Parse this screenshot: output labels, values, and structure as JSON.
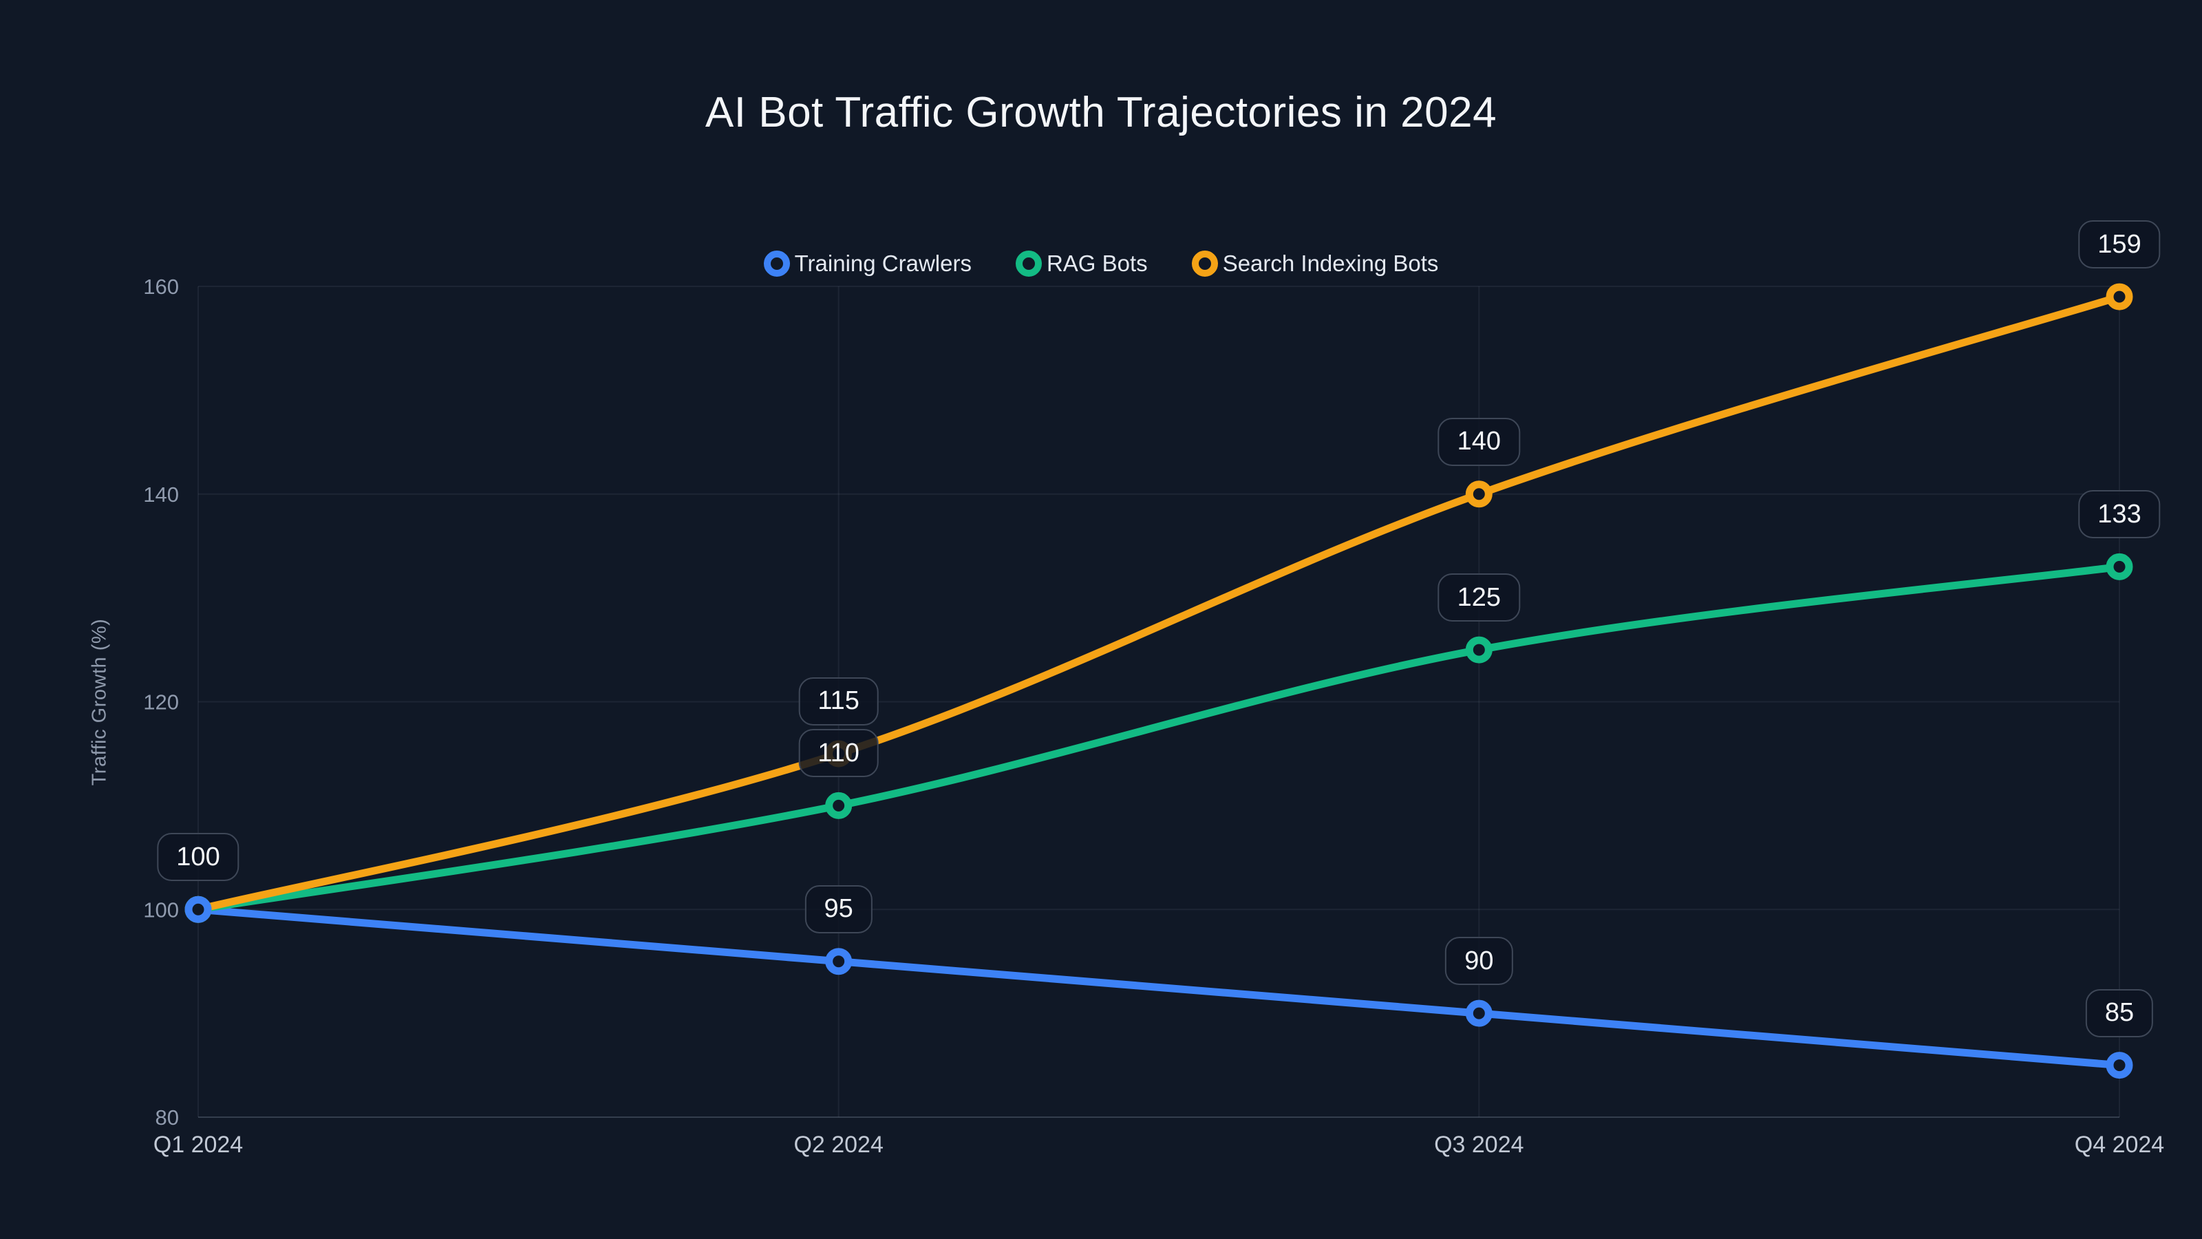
{
  "title": "AI Bot Traffic Growth Trajectories in 2024",
  "chart_data": {
    "type": "line",
    "title": "AI Bot Traffic Growth Trajectories in 2024",
    "categories": [
      "Q1 2024",
      "Q2 2024",
      "Q3 2024",
      "Q4 2024"
    ],
    "series": [
      {
        "name": "Training Crawlers",
        "color": "#3D82F6",
        "values": [
          100,
          95,
          90,
          85
        ]
      },
      {
        "name": "RAG Bots",
        "color": "#13BB84",
        "values": [
          100,
          110,
          125,
          133
        ]
      },
      {
        "name": "Search Indexing Bots",
        "color": "#F5A316",
        "values": [
          100,
          115,
          140,
          159
        ]
      }
    ],
    "xlabel": "",
    "ylabel": "Traffic Growth (%)",
    "ylim": [
      80,
      160
    ],
    "yticks": [
      80,
      100,
      120,
      140,
      160
    ],
    "grid": true,
    "legend_position": "top-center",
    "point_labels": {
      "shown": true,
      "q1_shared_label": "100",
      "values": [
        "100",
        "115",
        "110",
        "95",
        "140",
        "125",
        "90",
        "159",
        "133",
        "85"
      ]
    },
    "theme": {
      "background": "#101826",
      "grid_color": "rgba(148,160,180,0.10)",
      "axis_line_color": "rgba(148,160,180,0.28)",
      "tick_label_color": "#909bae",
      "x_label_color": "#c2c9d5",
      "axis_title_color": "#8e99ab",
      "legend_text_color": "#e4e9f1",
      "title_color": "#f4f6f9",
      "label_box_bg": "rgba(13,20,34,0.85)",
      "label_box_border": "#3e4757",
      "label_box_text": "#f5f7fa"
    }
  }
}
